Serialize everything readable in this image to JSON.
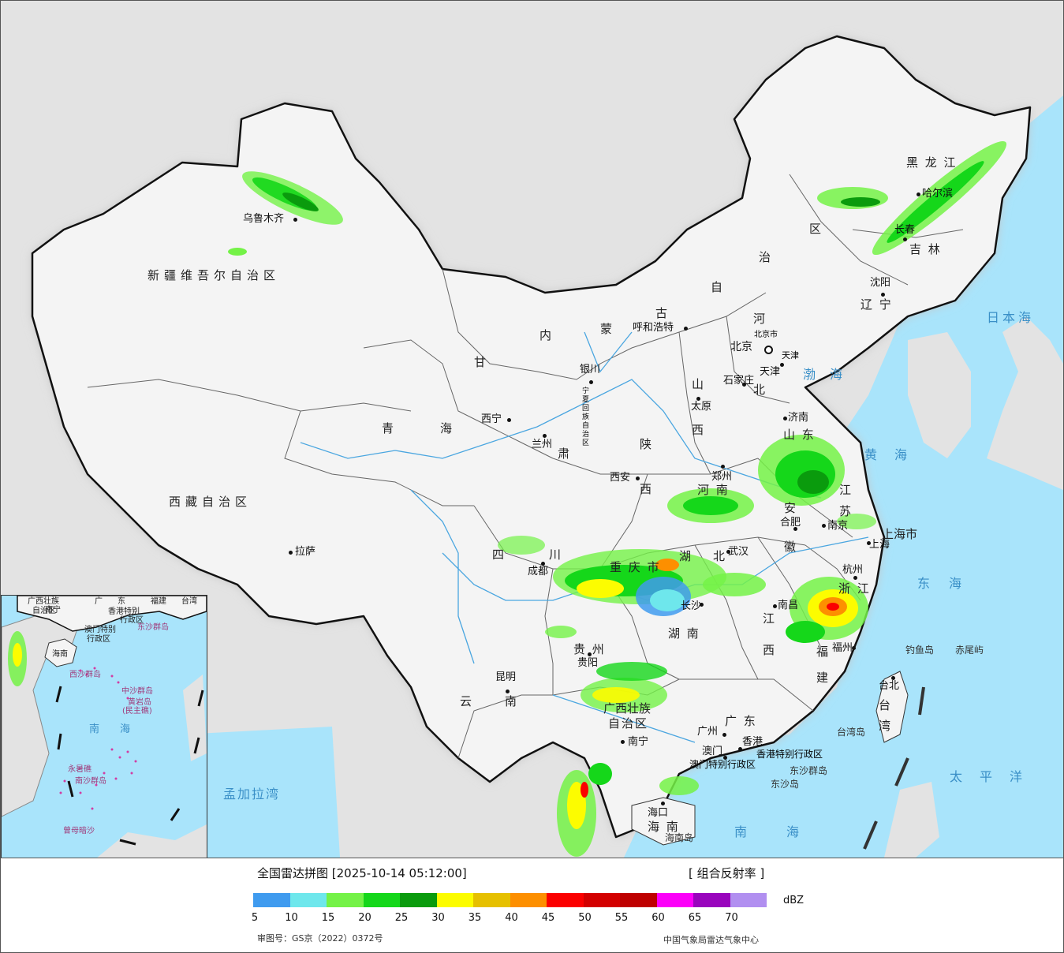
{
  "map": {
    "provinces": [
      {
        "name": "新疆维吾尔自治区",
        "id": "xinjiang"
      },
      {
        "name": "西藏自治区",
        "id": "xizang"
      },
      {
        "name": "青",
        "id": "qinghai1"
      },
      {
        "name": "海",
        "id": "qinghai2"
      },
      {
        "name": "甘",
        "id": "gansu1"
      },
      {
        "name": "肃",
        "id": "gansu2"
      },
      {
        "name": "内",
        "id": "nm1"
      },
      {
        "name": "蒙",
        "id": "nm2"
      },
      {
        "name": "古",
        "id": "nm3"
      },
      {
        "name": "自",
        "id": "nm4"
      },
      {
        "name": "治",
        "id": "nm5"
      },
      {
        "name": "区",
        "id": "nm6"
      },
      {
        "name": "黑 龙 江",
        "id": "heilongjiang"
      },
      {
        "name": "吉 林",
        "id": "jilin"
      },
      {
        "name": "辽 宁",
        "id": "liaoning"
      },
      {
        "name": "河",
        "id": "hebei1"
      },
      {
        "name": "北",
        "id": "hebei2"
      },
      {
        "name": "山",
        "id": "shanxi1"
      },
      {
        "name": "西",
        "id": "shanxi2"
      },
      {
        "name": "陕",
        "id": "shaanxi1"
      },
      {
        "name": "西",
        "id": "shaanxi2"
      },
      {
        "name": "山 东",
        "id": "shandong"
      },
      {
        "name": "河 南",
        "id": "henan"
      },
      {
        "name": "江",
        "id": "jiangsu1"
      },
      {
        "name": "苏",
        "id": "jiangsu2"
      },
      {
        "name": "安",
        "id": "anhui1"
      },
      {
        "name": "徽",
        "id": "anhui2"
      },
      {
        "name": "湖",
        "id": "hubei1"
      },
      {
        "name": "北",
        "id": "hubei2"
      },
      {
        "name": "湖 南",
        "id": "hunan"
      },
      {
        "name": "江",
        "id": "jiangxi1"
      },
      {
        "name": "西",
        "id": "jiangxi2"
      },
      {
        "name": "浙 江",
        "id": "zhejiang"
      },
      {
        "name": "福",
        "id": "fujian1"
      },
      {
        "name": "建",
        "id": "fujian2"
      },
      {
        "name": "四",
        "id": "sichuan1"
      },
      {
        "name": "川",
        "id": "sichuan2"
      },
      {
        "name": "重 庆 市",
        "id": "chongqing"
      },
      {
        "name": "贵 州",
        "id": "guizhou"
      },
      {
        "name": "云",
        "id": "yunnan1"
      },
      {
        "name": "南",
        "id": "yunnan2"
      },
      {
        "name": "广西壮族",
        "id": "guangxi1"
      },
      {
        "name": "自治区",
        "id": "guangxi2"
      },
      {
        "name": "广 东",
        "id": "guangdong"
      },
      {
        "name": "海 南",
        "id": "hainan"
      },
      {
        "name": "宁夏回族自治区",
        "id": "ningxia"
      },
      {
        "name": "上海市",
        "id": "shanghai"
      },
      {
        "name": "台湾",
        "id": "taiwan"
      },
      {
        "name": "香港特别行政区",
        "id": "hk"
      },
      {
        "name": "澳门特别行政区",
        "id": "macau"
      },
      {
        "name": "北京市",
        "id": "beijing"
      },
      {
        "name": "天津",
        "id": "tianjin"
      }
    ],
    "cities": [
      {
        "name": "乌鲁木齐",
        "id": "urumqi"
      },
      {
        "name": "拉萨",
        "id": "lhasa"
      },
      {
        "name": "西宁",
        "id": "xining"
      },
      {
        "name": "兰州",
        "id": "lanzhou"
      },
      {
        "name": "银川",
        "id": "yinchuan"
      },
      {
        "name": "呼和浩特",
        "id": "hohhot"
      },
      {
        "name": "北京",
        "id": "beijing-city"
      },
      {
        "name": "石家庄",
        "id": "shijiazhuang"
      },
      {
        "name": "太原",
        "id": "taiyuan"
      },
      {
        "name": "西安",
        "id": "xian"
      },
      {
        "name": "郑州",
        "id": "zhengzhou"
      },
      {
        "name": "济南",
        "id": "jinan"
      },
      {
        "name": "合肥",
        "id": "hefei"
      },
      {
        "name": "南京",
        "id": "nanjing"
      },
      {
        "name": "上海",
        "id": "shanghai-city"
      },
      {
        "name": "杭州",
        "id": "hangzhou"
      },
      {
        "name": "武汉",
        "id": "wuhan"
      },
      {
        "name": "长沙",
        "id": "changsha"
      },
      {
        "name": "南昌",
        "id": "nanchang"
      },
      {
        "name": "福州",
        "id": "fuzhou"
      },
      {
        "name": "台北",
        "id": "taipei"
      },
      {
        "name": "成都",
        "id": "chengdu"
      },
      {
        "name": "贵阳",
        "id": "guiyang"
      },
      {
        "name": "昆明",
        "id": "kunming"
      },
      {
        "name": "南宁",
        "id": "nanning"
      },
      {
        "name": "广州",
        "id": "guangzhou"
      },
      {
        "name": "香港",
        "id": "hongkong"
      },
      {
        "name": "澳门",
        "id": "macao"
      },
      {
        "name": "海口",
        "id": "haikou"
      },
      {
        "name": "沈阳",
        "id": "shenyang"
      },
      {
        "name": "长春",
        "id": "changchun"
      },
      {
        "name": "哈尔滨",
        "id": "harbin"
      },
      {
        "name": "天津",
        "id": "tianjin-city"
      }
    ],
    "seas": [
      {
        "name": "日本海",
        "id": "sea-japan"
      },
      {
        "name": "渤海",
        "id": "sea-bohai"
      },
      {
        "name": "黄海",
        "id": "sea-yellow"
      },
      {
        "name": "东海",
        "id": "sea-east"
      },
      {
        "name": "太平洋",
        "id": "sea-pacific"
      },
      {
        "name": "南海",
        "id": "sea-south"
      },
      {
        "name": "孟加拉湾",
        "id": "sea-bengal"
      }
    ],
    "islands": [
      {
        "name": "钓鱼岛",
        "id": "diaoyu"
      },
      {
        "name": "赤尾屿",
        "id": "chiwei"
      },
      {
        "name": "台湾岛",
        "id": "taiwan-island"
      },
      {
        "name": "东沙群岛",
        "id": "dongsha1"
      },
      {
        "name": "东沙岛",
        "id": "dongsha2"
      },
      {
        "name": "海南岛",
        "id": "hainan-island"
      }
    ]
  },
  "inset": {
    "labels": [
      {
        "text": "广西壮族",
        "id": "i-gx1"
      },
      {
        "text": "自治区",
        "id": "i-gx2"
      },
      {
        "text": "广",
        "id": "i-gd1"
      },
      {
        "text": "东",
        "id": "i-gd2"
      },
      {
        "text": "福建",
        "id": "i-fj"
      },
      {
        "text": "台湾",
        "id": "i-tw"
      },
      {
        "text": "南宁",
        "id": "i-nn"
      },
      {
        "text": "香港特别",
        "id": "i-hk1"
      },
      {
        "text": "行政区",
        "id": "i-hk2"
      },
      {
        "text": "澳门特别",
        "id": "i-mo1"
      },
      {
        "text": "行政区",
        "id": "i-mo2"
      },
      {
        "text": "东沙群岛",
        "id": "i-ds"
      },
      {
        "text": "海南",
        "id": "i-hn"
      },
      {
        "text": "西沙群岛",
        "id": "i-xs"
      },
      {
        "text": "中沙群岛",
        "id": "i-zs"
      },
      {
        "text": "黄岩岛",
        "id": "i-hy1"
      },
      {
        "text": "(民主礁)",
        "id": "i-hy2"
      },
      {
        "text": "南",
        "id": "i-nh1"
      },
      {
        "text": "海",
        "id": "i-nh2"
      },
      {
        "text": "永暑礁",
        "id": "i-ysj"
      },
      {
        "text": "南沙群岛",
        "id": "i-ns"
      },
      {
        "text": "曾母暗沙",
        "id": "i-zm"
      }
    ]
  },
  "legend": {
    "title": "全国雷达拼图 [2025-10-14 05:12:00]",
    "product": "[ 组合反射率 ]",
    "unit": "dBZ",
    "colors": [
      "#3f9bef",
      "#6ee7ec",
      "#74f247",
      "#15d71a",
      "#0a9b0d",
      "#fcfc00",
      "#e6c000",
      "#fd8f00",
      "#fb0000",
      "#d30000",
      "#be0000",
      "#fc00f9",
      "#9905bd",
      "#b18ff0"
    ],
    "ticks": [
      "5",
      "10",
      "15",
      "20",
      "25",
      "30",
      "35",
      "40",
      "45",
      "50",
      "55",
      "60",
      "65",
      "70"
    ],
    "approval": "审图号：GS京（2022）0372号",
    "agency": "中国气象局雷达气象中心"
  }
}
